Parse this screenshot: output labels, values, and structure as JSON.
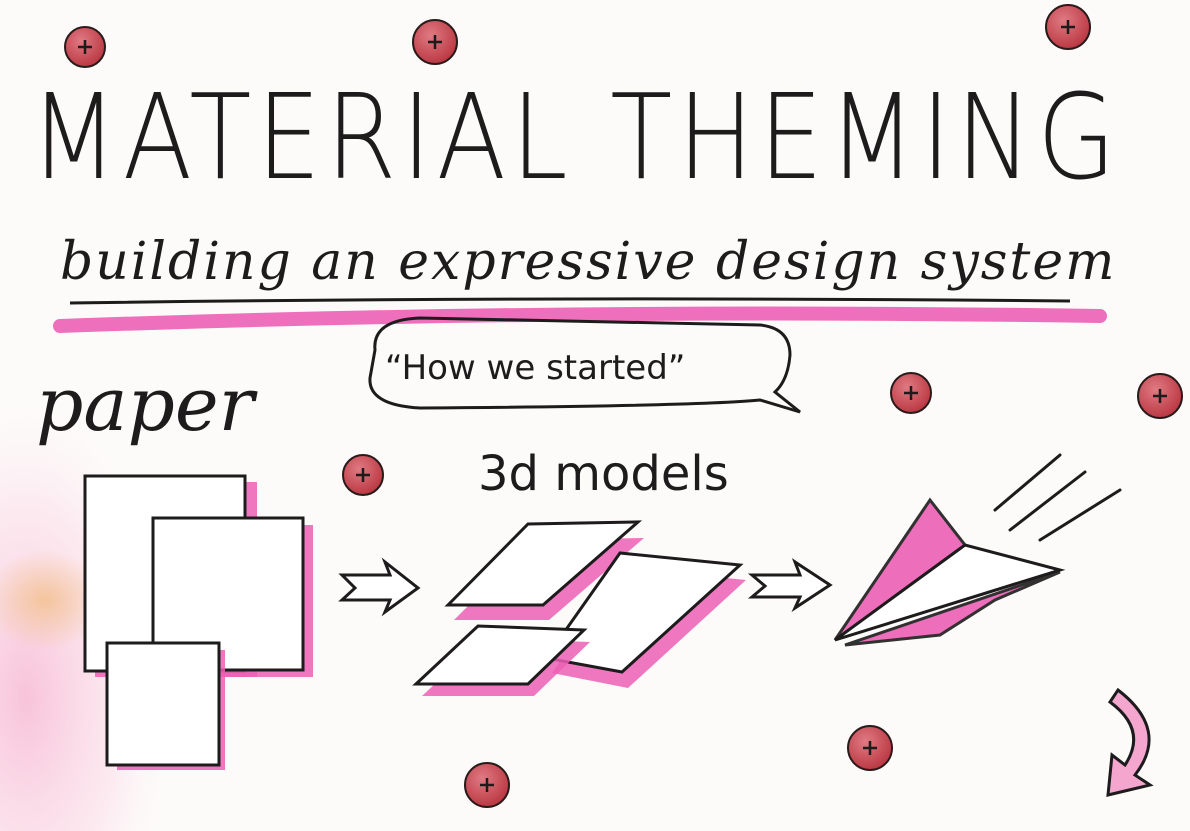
{
  "title": "MATERIAL THEMING",
  "subtitle": "building an expressive design system",
  "label_paper": "paper",
  "speech_bubble": "“How we started”",
  "label_3d_models": "3d models",
  "colors": {
    "ink": "#1d1b1b",
    "pink": "#ec5fb4",
    "button_fill": "#c9464f",
    "paper_background": "#fdfbfa",
    "watercolor_orange": "#f2c08a"
  },
  "icons": {
    "plus_button": "plus-circle-icon",
    "arrow_right": "arrow-right-icon",
    "next_page": "curved-arrow-down-icon",
    "paper_plane": "paper-plane-icon"
  }
}
